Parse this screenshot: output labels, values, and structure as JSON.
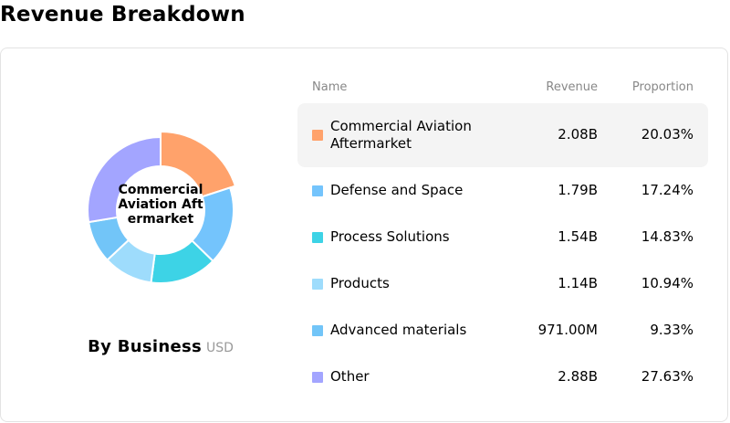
{
  "page": {
    "title": "Revenue Breakdown"
  },
  "chart": {
    "center_label": "Commercial Aviation Aftermarket",
    "caption": "By Business",
    "caption_unit": "USD"
  },
  "table": {
    "headers": {
      "name": "Name",
      "revenue": "Revenue",
      "proportion": "Proportion"
    },
    "rows": [
      {
        "name": "Commercial Aviation Aftermarket",
        "revenue": "2.08B",
        "proportion": "20.03%",
        "color": "#FFA26B"
      },
      {
        "name": "Defense and Space",
        "revenue": "1.79B",
        "proportion": "17.24%",
        "color": "#74C4FC"
      },
      {
        "name": "Process Solutions",
        "revenue": "1.54B",
        "proportion": "14.83%",
        "color": "#3DD3E6"
      },
      {
        "name": "Products",
        "revenue": "1.14B",
        "proportion": "10.94%",
        "color": "#9EDCFC"
      },
      {
        "name": "Advanced materials",
        "revenue": "971.00M",
        "proportion": "9.33%",
        "color": "#72C5F8"
      },
      {
        "name": "Other",
        "revenue": "2.88B",
        "proportion": "27.63%",
        "color": "#A3A5FF"
      }
    ]
  },
  "chart_data": {
    "type": "pie",
    "categories": [
      "Commercial Aviation Aftermarket",
      "Defense and Space",
      "Process Solutions",
      "Products",
      "Advanced materials",
      "Other"
    ],
    "values": [
      20.03,
      17.24,
      14.83,
      10.94,
      9.33,
      27.63
    ],
    "colors": [
      "#FFA26B",
      "#74C4FC",
      "#3DD3E6",
      "#9EDCFC",
      "#72C5F8",
      "#A3A5FF"
    ],
    "highlighted": "Commercial Aviation Aftermarket",
    "title": "By Business"
  }
}
